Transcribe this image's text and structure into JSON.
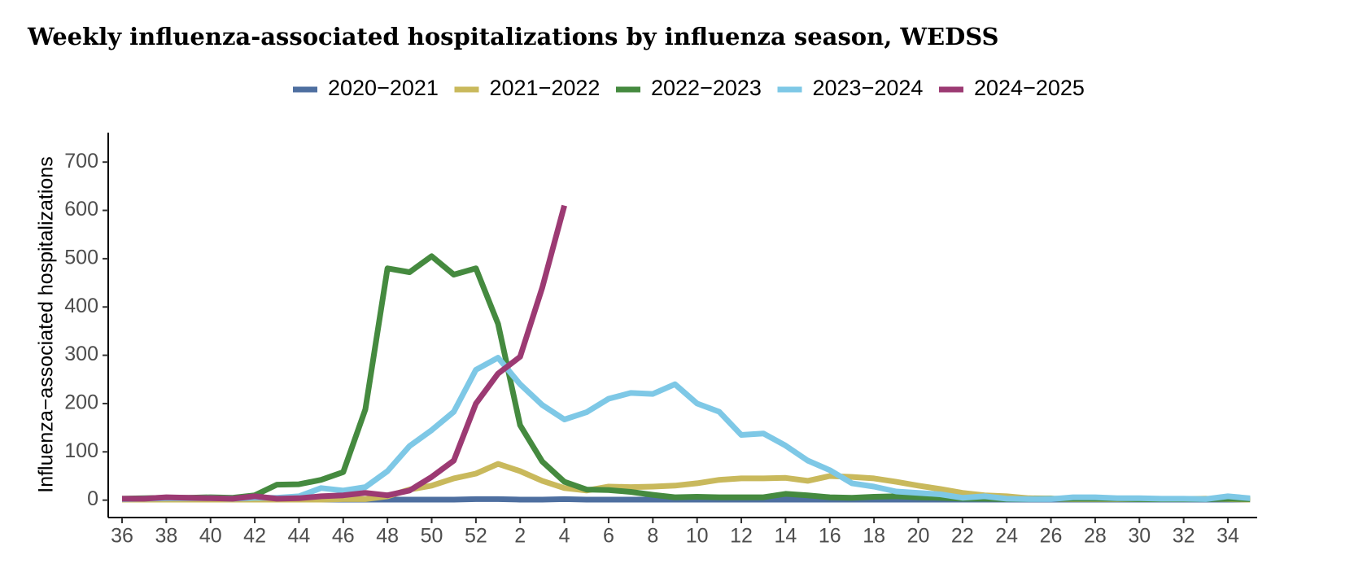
{
  "chart_data": {
    "type": "line",
    "title": "Weekly influenza-associated hospitalizations by influenza season, WEDSS",
    "y_label": "Influenza−associated hospitalizations",
    "categories": [
      "36",
      null,
      "38",
      null,
      "40",
      null,
      "42",
      null,
      "44",
      null,
      "46",
      null,
      "48",
      null,
      "50",
      null,
      "52",
      null,
      "2",
      null,
      "4",
      null,
      "6",
      null,
      "8",
      null,
      "10",
      null,
      "12",
      null,
      "14",
      null,
      "16",
      null,
      "18",
      null,
      "20",
      null,
      "22",
      null,
      "24",
      null,
      "26",
      null,
      "28",
      null,
      "30",
      null,
      "32",
      null,
      "34",
      null
    ],
    "ylim": [
      -36,
      761
    ],
    "yticks": [
      0,
      100,
      200,
      300,
      400,
      500,
      600,
      700
    ],
    "grid": false,
    "legend": "top",
    "series": [
      {
        "name": "2020−2021",
        "color": "#4e6fa0",
        "values": [
          2,
          2,
          2,
          2,
          2,
          1,
          2,
          1,
          1,
          1,
          1,
          1,
          1,
          1,
          1,
          1,
          2,
          2,
          1,
          1,
          2,
          1,
          1,
          1,
          1,
          1,
          1,
          1,
          1,
          1,
          1,
          1,
          1,
          1,
          1,
          1,
          1,
          1,
          1,
          1,
          1,
          1,
          1,
          1,
          1,
          1,
          1,
          1,
          1,
          1,
          1,
          1
        ]
      },
      {
        "name": "2021−2022",
        "color": "#c9b95c",
        "values": [
          1,
          1,
          1,
          1,
          1,
          1,
          1,
          1,
          1,
          1,
          2,
          2,
          8,
          22,
          30,
          45,
          55,
          75,
          60,
          40,
          25,
          20,
          28,
          27,
          28,
          30,
          35,
          42,
          45,
          45,
          46,
          40,
          50,
          48,
          45,
          38,
          30,
          23,
          15,
          10,
          8,
          4,
          3,
          2,
          2,
          2,
          2,
          2,
          2,
          3,
          2,
          1
        ]
      },
      {
        "name": "2022−2023",
        "color": "#458a3f",
        "values": [
          3,
          4,
          5,
          5,
          6,
          5,
          10,
          32,
          33,
          42,
          58,
          188,
          480,
          472,
          505,
          467,
          480,
          365,
          155,
          80,
          38,
          22,
          21,
          17,
          11,
          6,
          7,
          6,
          6,
          6,
          13,
          10,
          6,
          5,
          7,
          8,
          6,
          5,
          3,
          3,
          2,
          2,
          3,
          3,
          3,
          3,
          2,
          2,
          2,
          2,
          3,
          2
        ]
      },
      {
        "name": "2023−2024",
        "color": "#7ec8e6",
        "values": [
          2,
          3,
          4,
          4,
          4,
          3,
          5,
          5,
          8,
          25,
          20,
          27,
          60,
          112,
          145,
          183,
          270,
          295,
          240,
          197,
          167,
          182,
          210,
          222,
          220,
          240,
          200,
          183,
          135,
          138,
          113,
          82,
          62,
          35,
          28,
          18,
          15,
          12,
          5,
          8,
          3,
          2,
          2,
          6,
          6,
          4,
          4,
          3,
          3,
          2,
          8,
          4
        ]
      },
      {
        "name": "2024−2025",
        "color": "#9c3a73",
        "values": [
          3,
          3,
          6,
          5,
          4,
          3,
          8,
          3,
          4,
          8,
          10,
          15,
          10,
          20,
          48,
          82,
          200,
          262,
          297,
          440,
          610,
          null,
          null,
          null,
          null,
          null,
          null,
          null,
          null,
          null,
          null,
          null,
          null,
          null,
          null,
          null,
          null,
          null,
          null,
          null,
          null,
          null,
          null,
          null,
          null,
          null,
          null,
          null,
          null,
          null,
          null,
          null
        ]
      }
    ]
  }
}
